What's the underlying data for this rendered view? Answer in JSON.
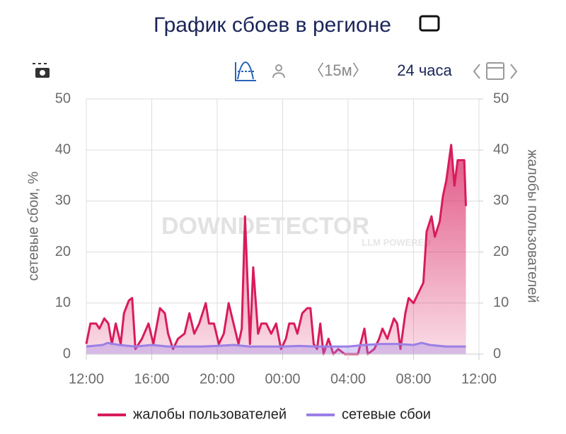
{
  "title": "График сбоев в регионе",
  "toolbar": {
    "interval": "〈15м〉",
    "range": "24 часа"
  },
  "chart_data": {
    "type": "line",
    "watermark": "DOWNDETECTOR",
    "watermark_sub": "LLM POWERED",
    "ylabel": "сетевые сбои, %",
    "y2label": "жалобы пользователей",
    "xlim": [
      0,
      24
    ],
    "xticks": [
      {
        "value": 0,
        "label": "12:00"
      },
      {
        "value": 4,
        "label": "16:00"
      },
      {
        "value": 8,
        "label": "20:00"
      },
      {
        "value": 12,
        "label": "00:00"
      },
      {
        "value": 16,
        "label": "04:00"
      },
      {
        "value": 20,
        "label": "08:00"
      },
      {
        "value": 24,
        "label": "12:00"
      }
    ],
    "ylim": [
      0,
      50
    ],
    "yticks": [
      0,
      10,
      20,
      30,
      40,
      50
    ],
    "y2lim": [
      0,
      50
    ],
    "y2ticks": [
      0,
      10,
      20,
      30,
      40,
      50
    ],
    "grid": true,
    "series": [
      {
        "name": "жалобы пользователей",
        "color": "#d81b5c",
        "axis": "y2",
        "x": [
          0,
          0.25,
          0.6,
          0.8,
          1.1,
          1.35,
          1.56,
          1.8,
          2.1,
          2.3,
          2.6,
          2.8,
          3.0,
          3.4,
          3.8,
          4.1,
          4.5,
          4.8,
          5.0,
          5.3,
          5.6,
          6.0,
          6.3,
          6.6,
          6.9,
          7.3,
          7.5,
          7.8,
          8.1,
          8.4,
          8.7,
          9.0,
          9.3,
          9.5,
          9.7,
          10.0,
          10.2,
          10.5,
          10.7,
          11.0,
          11.3,
          11.6,
          11.9,
          12.2,
          12.4,
          12.7,
          12.9,
          13.2,
          13.5,
          13.7,
          13.9,
          14.1,
          14.3,
          14.5,
          14.8,
          15.1,
          15.4,
          15.8,
          16.2,
          16.6,
          17.0,
          17.2,
          17.6,
          17.9,
          18.1,
          18.4,
          18.8,
          19.0,
          19.2,
          19.5,
          19.7,
          20.0,
          20.3,
          20.6,
          20.8,
          21.1,
          21.3,
          21.6,
          21.8,
          22.0,
          22.3,
          22.5,
          22.7,
          22.9,
          23.1,
          23.2
        ],
        "values": [
          2,
          6,
          6,
          5,
          7,
          6,
          2,
          6,
          2,
          8,
          10.5,
          11,
          1,
          3,
          6,
          2,
          9,
          8,
          4,
          1,
          3,
          4,
          8,
          4,
          6,
          10,
          6,
          6,
          2,
          4,
          10,
          6,
          2,
          5,
          27,
          2,
          17,
          4,
          6,
          6,
          4,
          6,
          1,
          3,
          6,
          6,
          4,
          8,
          9,
          9,
          2,
          1,
          6,
          0,
          3,
          0,
          1,
          0,
          0,
          0,
          5,
          0,
          1,
          3,
          5,
          3,
          7,
          6,
          1,
          8,
          11,
          10,
          12,
          14,
          24,
          27,
          23,
          26,
          31,
          34,
          41,
          33,
          38,
          38,
          38,
          29
        ]
      },
      {
        "name": "сетевые сбои",
        "color": "#9b7fe6",
        "axis": "y",
        "x": [
          0,
          1,
          1.3,
          2,
          3,
          4,
          5,
          6,
          7,
          8,
          9,
          10,
          11,
          12,
          13,
          14,
          15,
          16,
          17,
          18,
          19,
          20,
          20.5,
          21,
          22,
          23,
          23.2
        ],
        "values": [
          1.5,
          1.8,
          2.2,
          1.8,
          1.5,
          1.8,
          1.5,
          1.5,
          1.5,
          1.6,
          1.8,
          1.5,
          1.5,
          1.5,
          1.6,
          1.5,
          1.5,
          1.5,
          1.8,
          2.0,
          2.0,
          1.8,
          2.2,
          1.8,
          1.5,
          1.5,
          1.5
        ]
      }
    ],
    "legend": "bottom"
  }
}
